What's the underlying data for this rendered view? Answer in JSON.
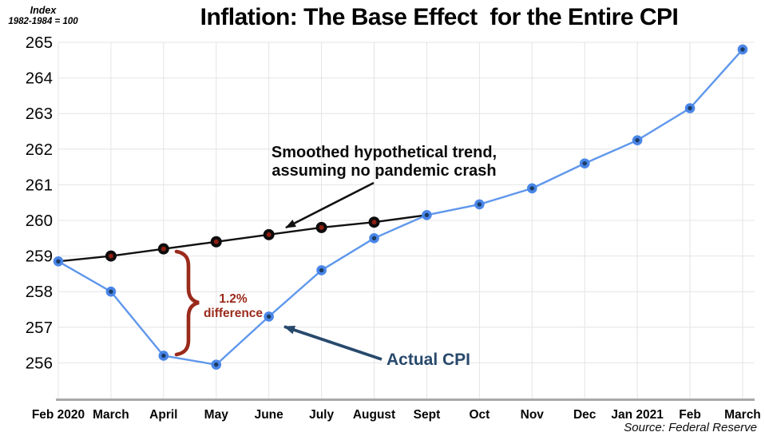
{
  "header": {
    "title": "Inflation: The Base Effect  for the Entire CPI",
    "index_label_line1": "Index",
    "index_label_line2": "1982-1984 = 100"
  },
  "chart_data": {
    "type": "line",
    "title": "Inflation: The Base Effect  for the Entire CPI",
    "ylabel": "Index 1982-1984 = 100",
    "xlabel": "",
    "ylim": [
      255,
      265
    ],
    "y_ticks": [
      256,
      257,
      258,
      259,
      260,
      261,
      262,
      263,
      264,
      265
    ],
    "grid": true,
    "grid_color": "#e4e4e4",
    "axis_color": "#a9a9a9",
    "legend_position": "none",
    "categories": [
      "Feb 2020",
      "March",
      "April",
      "May",
      "June",
      "July",
      "August",
      "Sept",
      "Oct",
      "Nov",
      "Dec",
      "Jan 2021",
      "Feb",
      "March"
    ],
    "series": [
      {
        "name": "Actual CPI",
        "line_color": "#5f97ec",
        "marker_color": "#4a86e8",
        "marker_center": "#1b3c63",
        "values": [
          258.85,
          258.0,
          256.2,
          255.95,
          257.3,
          258.6,
          259.5,
          260.15,
          260.45,
          260.9,
          261.6,
          262.25,
          263.15,
          264.8
        ]
      },
      {
        "name": "Smoothed hypothetical trend",
        "line_color": "#111111",
        "marker_color": "#0c0c0c",
        "marker_center": "#8e1f12",
        "values": [
          258.85,
          259.0,
          259.2,
          259.4,
          259.6,
          259.8,
          259.95,
          260.15,
          null,
          null,
          null,
          null,
          null,
          null
        ]
      }
    ],
    "source": "Source: Federal Reserve"
  },
  "annotations": {
    "trend_label": "Smoothed hypothetical trend,\nassuming no pandemic crash",
    "difference_label": "1.2%\ndifference",
    "actual_label": "Actual CPI",
    "colors": {
      "dark_red": "#9a2a1b",
      "navy": "#28496c",
      "black": "#111111"
    }
  }
}
